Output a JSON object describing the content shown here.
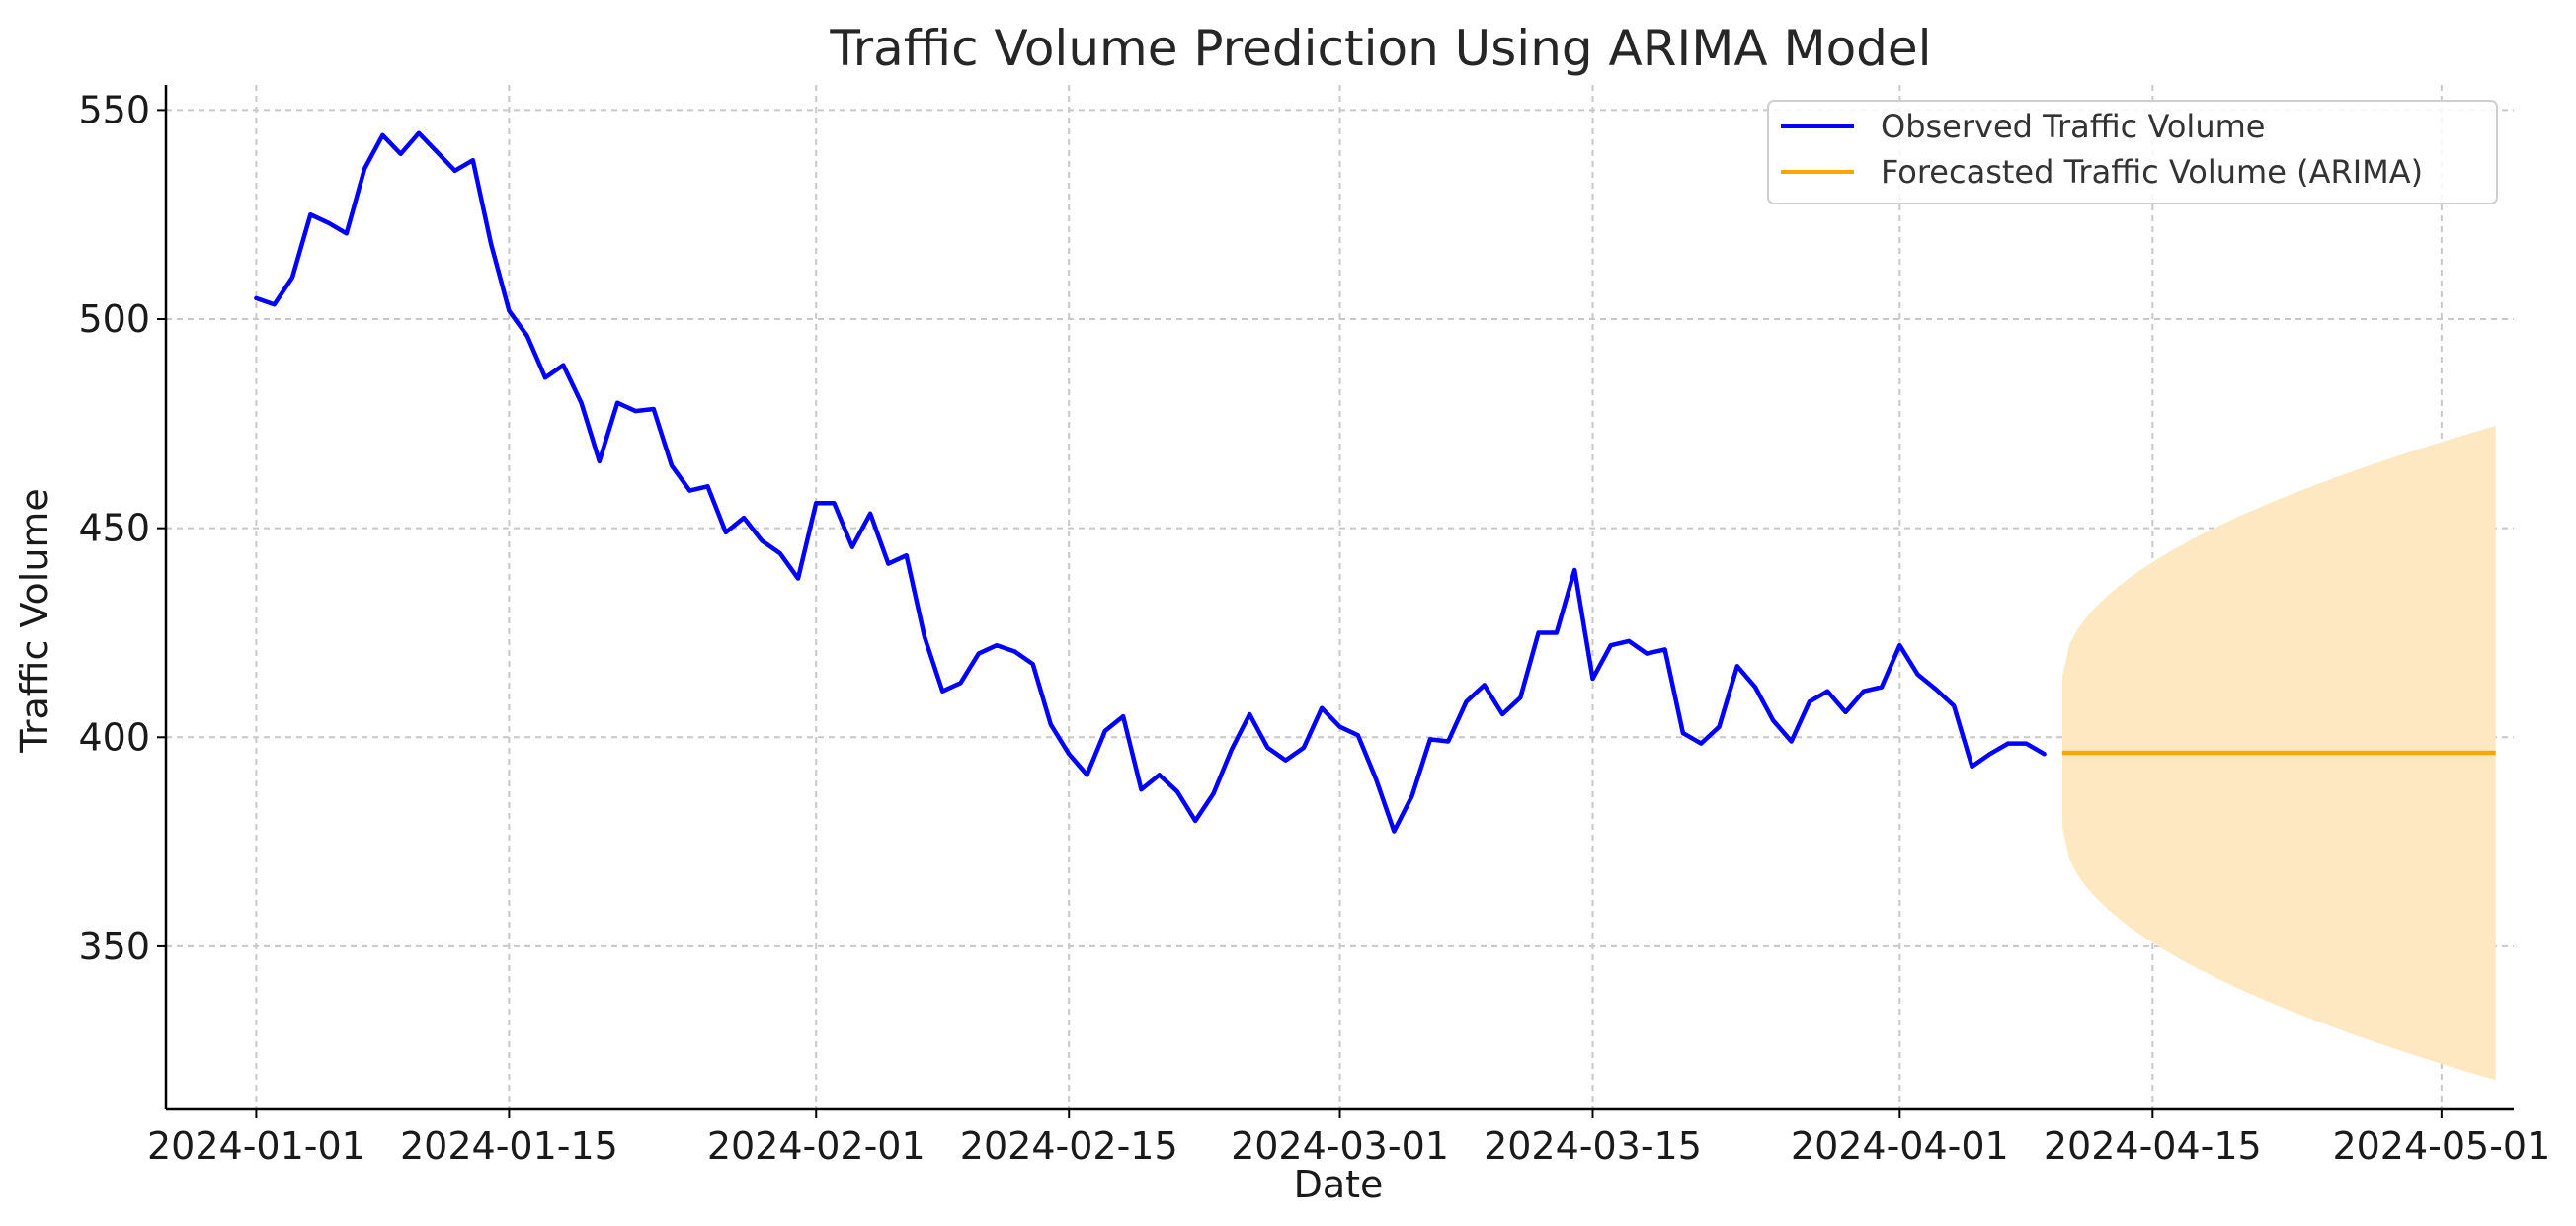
{
  "chart_data": {
    "type": "line",
    "title": "Traffic Volume Prediction Using ARIMA Model",
    "xlabel": "Date",
    "ylabel": "Traffic Volume",
    "xlim": [
      "2023-12-27",
      "2024-05-05"
    ],
    "ylim": [
      311,
      556
    ],
    "x_ticks": [
      "2024-01-01",
      "2024-01-15",
      "2024-02-01",
      "2024-02-15",
      "2024-03-01",
      "2024-03-15",
      "2024-04-01",
      "2024-04-15",
      "2024-05-01"
    ],
    "y_ticks": [
      350,
      400,
      450,
      500,
      550
    ],
    "grid": true,
    "grid_style": "dashed",
    "legend_position": "top-right",
    "series": [
      {
        "name": "Observed Traffic Volume",
        "color": "#0000ff",
        "start_date": "2024-01-01",
        "frequency": "daily",
        "values": [
          505,
          503.5,
          510,
          525,
          523,
          520.5,
          536,
          544,
          539.5,
          544.5,
          540,
          535.5,
          538,
          518,
          502,
          496,
          486,
          489,
          480,
          466,
          480,
          478,
          478.5,
          465,
          459,
          460,
          449,
          452.5,
          447,
          444,
          438,
          456,
          456,
          445.5,
          453.5,
          441.5,
          443.5,
          424,
          411,
          413,
          420,
          422,
          420.5,
          417.5,
          403,
          396,
          391,
          401.5,
          405,
          387.5,
          391,
          387,
          380,
          386.5,
          397,
          405.5,
          397.5,
          394.5,
          397.5,
          407,
          402.5,
          400.5,
          390,
          377.5,
          386,
          399.5,
          399,
          408.5,
          412.5,
          405.5,
          409.5,
          425,
          425,
          440,
          414,
          422,
          423,
          420,
          421,
          401,
          398.5,
          402.5,
          417,
          412,
          404,
          399,
          408.5,
          411,
          406,
          411,
          412,
          422,
          415,
          411.5,
          407.5,
          393,
          396,
          398.5,
          398.5,
          396
        ]
      },
      {
        "name": "Forecasted Traffic Volume (ARIMA)",
        "color": "#ffa500",
        "start_date": "2024-04-10",
        "end_date": "2024-05-04",
        "value": 396.3,
        "ci_color": "#fde8c2",
        "ci_start": [
          378.5,
          414.5
        ],
        "ci_end": [
          318,
          474.5
        ]
      }
    ]
  }
}
